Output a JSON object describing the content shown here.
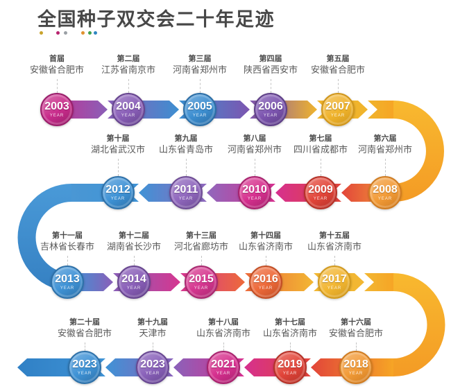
{
  "title": {
    "text": "全国种子双交会二十年足迹",
    "dot_colors": [
      "#C9A32C",
      "#B8246F",
      "#9BA0A5",
      "#E0922F",
      "#3FA24D",
      "#2E86C1"
    ]
  },
  "timeline": {
    "year_caption": "YEAR",
    "ribbon_colors": {
      "curve_gold_light": "#F8B92F",
      "curve_gold_dark": "#F49B25",
      "curve_blue_light": "#4A9AD8",
      "curve_blue_dark": "#3580C2",
      "junction_gold": "#F6A525",
      "junction_blue": "#4A97D4",
      "tail_arrow_blue": "#3080C5"
    },
    "items": [
      {
        "year": "2003",
        "session": "首届",
        "city": "安徽省合肥市",
        "color": "#C92C8C",
        "dark": "#9A1F6B"
      },
      {
        "year": "2004",
        "session": "第二届",
        "city": "江苏省南京市",
        "color": "#8A5FB8",
        "dark": "#67458F"
      },
      {
        "year": "2005",
        "session": "第三届",
        "city": "河南省郑州市",
        "color": "#3D8FD1",
        "dark": "#2C6EA6"
      },
      {
        "year": "2006",
        "session": "第四届",
        "city": "陕西省西安市",
        "color": "#7D55B0",
        "dark": "#5E3F87"
      },
      {
        "year": "2007",
        "session": "第五届",
        "city": "安徽省合肥市",
        "color": "#F0B42C",
        "dark": "#D0961C"
      },
      {
        "year": "2008",
        "session": "第六届",
        "city": "河南省郑州市",
        "color": "#F29C38",
        "dark": "#D07C21"
      },
      {
        "year": "2009",
        "session": "第七届",
        "city": "四川省成都市",
        "color": "#E2453A",
        "dark": "#B53228"
      },
      {
        "year": "2010",
        "session": "第八届",
        "city": "河南省郑州市",
        "color": "#D6308F",
        "dark": "#A8226E"
      },
      {
        "year": "2011",
        "session": "第九届",
        "city": "山东省青岛市",
        "color": "#9068BD",
        "dark": "#6E4C95"
      },
      {
        "year": "2012",
        "session": "第十届",
        "city": "湖北省武汉市",
        "color": "#3F93D6",
        "dark": "#2E71A9"
      },
      {
        "year": "2013",
        "session": "第十一届",
        "city": "吉林省长春市",
        "color": "#3F93D6",
        "dark": "#2E71A9"
      },
      {
        "year": "2014",
        "session": "第十二届",
        "city": "湖南省长沙市",
        "color": "#8A5FB8",
        "dark": "#67458F"
      },
      {
        "year": "2015",
        "session": "第十三届",
        "city": "河北省廊坊市",
        "color": "#D63690",
        "dark": "#A8286F"
      },
      {
        "year": "2016",
        "session": "第十四届",
        "city": "山东省济南市",
        "color": "#ED6A3A",
        "dark": "#C24E25"
      },
      {
        "year": "2017",
        "session": "第十五届",
        "city": "山东省济南市",
        "color": "#F2B733",
        "dark": "#D29A1F"
      },
      {
        "year": "2018",
        "session": "第十六届",
        "city": "安徽省合肥市",
        "color": "#F29C38",
        "dark": "#D07C21"
      },
      {
        "year": "2019",
        "session": "第十七届",
        "city": "山东省济南市",
        "color": "#E2453A",
        "dark": "#B53228"
      },
      {
        "year": "2021",
        "session": "第十八届",
        "city": "山东省济南市",
        "color": "#D6308F",
        "dark": "#A8226E"
      },
      {
        "year": "2023",
        "session": "第十九届",
        "city": "天津市",
        "color": "#8A62BA",
        "dark": "#684792"
      },
      {
        "year": "2023",
        "session": "第二十届",
        "city": "安徽省合肥市",
        "color": "#3F93D6",
        "dark": "#2E71A9"
      }
    ]
  }
}
